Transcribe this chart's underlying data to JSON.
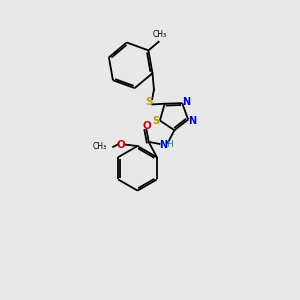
{
  "background_color": "#e8e8e8",
  "bond_color": "#000000",
  "sulfur_color": "#b8a000",
  "nitrogen_color": "#0000cc",
  "oxygen_color": "#cc0000",
  "figsize": [
    3.0,
    3.0
  ],
  "dpi": 100,
  "xlim": [
    0,
    10
  ],
  "ylim": [
    0,
    10
  ]
}
